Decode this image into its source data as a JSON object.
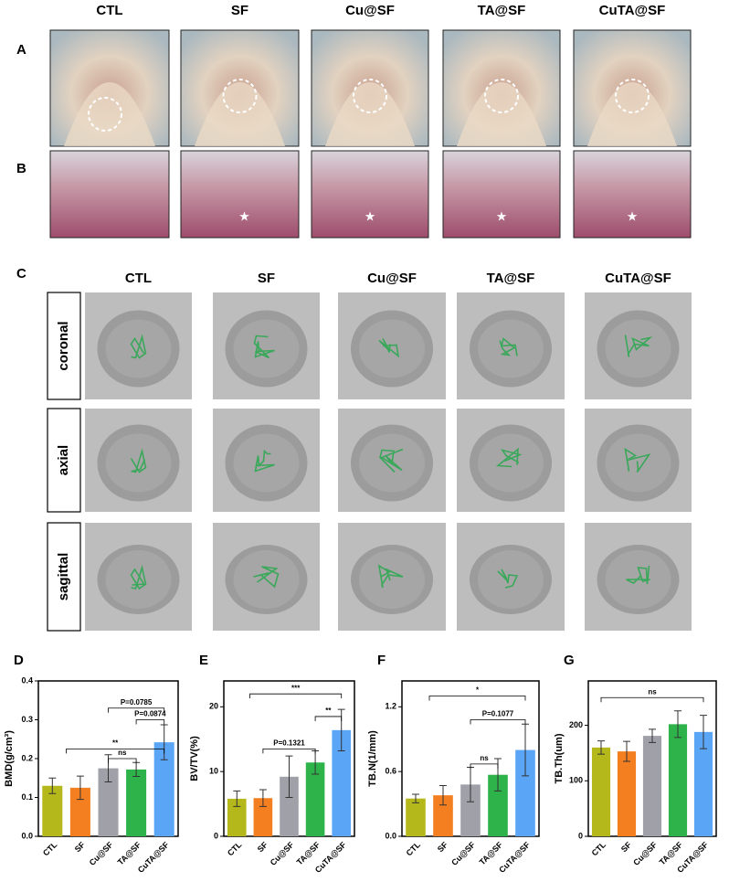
{
  "panel_a": {
    "letter": "A",
    "columns": [
      "CTL",
      "SF",
      "Cu@SF",
      "TA@SF",
      "CuTA@SF"
    ]
  },
  "panel_b": {
    "letter": "B"
  },
  "panel_c": {
    "letter": "C",
    "columns": [
      "CTL",
      "SF",
      "Cu@SF",
      "TA@SF",
      "CuTA@SF"
    ],
    "rows": [
      "coronal",
      "axial",
      "sagittal"
    ]
  },
  "chart_data": [
    {
      "type": "bar",
      "panel": "D",
      "ylabel": "BMD(g/cm³)",
      "categories": [
        "CTL",
        "SF",
        "Cu@SF",
        "TA@SF",
        "CuTA@SF"
      ],
      "values": [
        0.13,
        0.125,
        0.175,
        0.172,
        0.242
      ],
      "errors": [
        0.02,
        0.03,
        0.035,
        0.018,
        0.045
      ],
      "colors": [
        "#b5b81a",
        "#f47f20",
        "#a0a0a8",
        "#2db34a",
        "#5aa5f5"
      ],
      "ylim": [
        0,
        0.4
      ],
      "yticks": [
        {
          "value": 0,
          "label": "0.0"
        },
        0.1,
        0.2,
        0.3,
        0.4
      ],
      "annotations": [
        "**",
        "ns",
        "P=0.0874",
        "P=0.0785"
      ]
    },
    {
      "type": "bar",
      "panel": "E",
      "ylabel": "BV/TV(%)",
      "categories": [
        "CTL",
        "SF",
        "Cu@SF",
        "TA@SF",
        "CuTA@SF"
      ],
      "values": [
        5.8,
        5.9,
        9.2,
        11.4,
        16.4
      ],
      "errors": [
        1.2,
        1.3,
        3.2,
        1.8,
        3.2
      ],
      "colors": [
        "#b5b81a",
        "#f47f20",
        "#a0a0a8",
        "#2db34a",
        "#5aa5f5"
      ],
      "ylim": [
        0,
        24
      ],
      "yticks": [
        0,
        10,
        20
      ],
      "annotations": [
        "***",
        "**",
        "P=0.1321"
      ]
    },
    {
      "type": "bar",
      "panel": "F",
      "ylabel": "TB.N(1/mm)",
      "categories": [
        "CTL",
        "SF",
        "Cu@SF",
        "TA@SF",
        "CuTA@SF"
      ],
      "values": [
        0.35,
        0.38,
        0.48,
        0.57,
        0.8
      ],
      "errors": [
        0.04,
        0.09,
        0.16,
        0.15,
        0.24
      ],
      "colors": [
        "#b5b81a",
        "#f47f20",
        "#a0a0a8",
        "#2db34a",
        "#5aa5f5"
      ],
      "ylim": [
        0,
        1.44
      ],
      "yticks": [
        {
          "value": 0,
          "label": "0.0"
        },
        0.6,
        1.2
      ],
      "annotations": [
        "*",
        "P=0.1077",
        "ns"
      ]
    },
    {
      "type": "bar",
      "panel": "G",
      "ylabel": "TB.Th(um)",
      "categories": [
        "CTL",
        "SF",
        "Cu@SF",
        "TA@SF",
        "CuTA@SF"
      ],
      "values": [
        160,
        153,
        181,
        202,
        188
      ],
      "errors": [
        12,
        18,
        12,
        24,
        30
      ],
      "colors": [
        "#b5b81a",
        "#f47f20",
        "#a0a0a8",
        "#2db34a",
        "#5aa5f5"
      ],
      "ylim": [
        0,
        280
      ],
      "yticks": [
        0,
        100,
        200
      ],
      "annotations": [
        "ns"
      ]
    }
  ]
}
